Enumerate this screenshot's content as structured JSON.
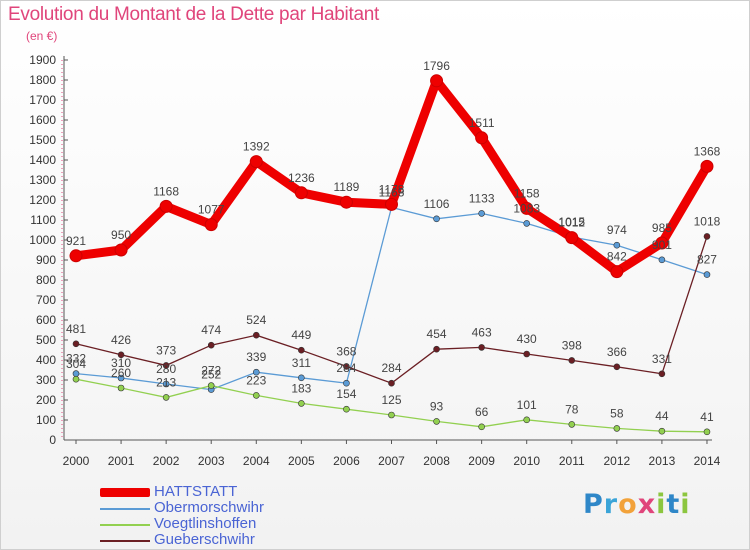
{
  "header": {
    "title": "Evolution du Montant de la Dette par Habitant",
    "subtitle": "(en €)"
  },
  "logo": {
    "letters": [
      {
        "char": "P",
        "color": "#2f87c8"
      },
      {
        "char": "r",
        "color": "#3aa4d8"
      },
      {
        "char": "o",
        "color": "#f2a23a"
      },
      {
        "char": "x",
        "color": "#e0457b"
      },
      {
        "char": "i",
        "color": "#8cc63f"
      },
      {
        "char": "t",
        "color": "#2f87c8"
      },
      {
        "char": "i",
        "color": "#8cc63f"
      }
    ]
  },
  "chart_data": {
    "type": "line",
    "title": "Evolution du Montant de la Dette par Habitant",
    "subtitle": "(en €)",
    "x": [
      "2000",
      "2001",
      "2002",
      "2003",
      "2004",
      "2005",
      "2006",
      "2007",
      "2008",
      "2009",
      "2010",
      "2011",
      "2012",
      "2013",
      "2014"
    ],
    "ylim": [
      0,
      1900
    ],
    "yticks": [
      0,
      100,
      200,
      300,
      400,
      500,
      600,
      700,
      800,
      900,
      1000,
      1100,
      1200,
      1300,
      1400,
      1500,
      1600,
      1700,
      1800,
      1900
    ],
    "grid": false,
    "legend_position": "bottom-left",
    "series": [
      {
        "name": "HATTSTATT",
        "color": "#ee0000",
        "emphasis": true,
        "values": [
          921,
          950,
          1168,
          1077,
          1392,
          1236,
          1189,
          1178,
          1796,
          1511,
          1158,
          1012,
          842,
          985,
          1368
        ]
      },
      {
        "name": "Obermorschwihr",
        "color": "#5b9bd5",
        "emphasis": false,
        "values": [
          332,
          310,
          280,
          252,
          339,
          311,
          284,
          1163,
          1106,
          1133,
          1083,
          1015,
          974,
          901,
          827
        ]
      },
      {
        "name": "Voegtlinshoffen",
        "color": "#92d050",
        "emphasis": false,
        "values": [
          304,
          260,
          213,
          272,
          223,
          183,
          154,
          125,
          93,
          66,
          101,
          78,
          58,
          44,
          41
        ]
      },
      {
        "name": "Gueberschwihr",
        "color": "#6b1f24",
        "emphasis": false,
        "values": [
          481,
          426,
          373,
          474,
          524,
          449,
          368,
          284,
          454,
          463,
          430,
          398,
          366,
          331,
          1018
        ]
      }
    ]
  }
}
